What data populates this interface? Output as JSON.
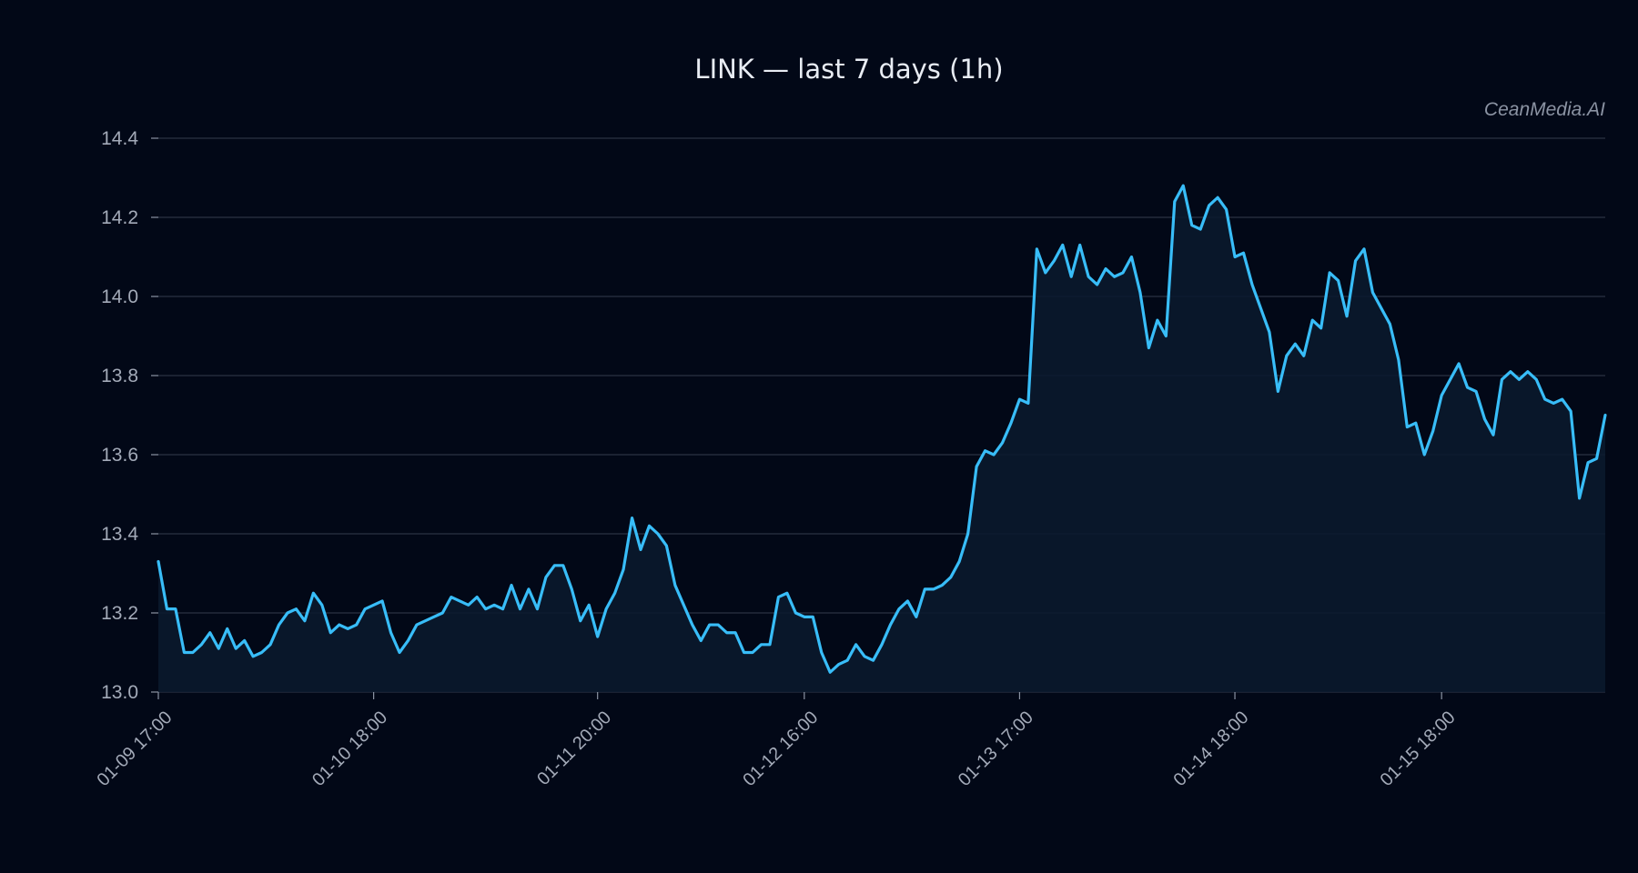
{
  "chart_data": {
    "type": "line",
    "title": "LINK — last 7 days (1h)",
    "watermark": "CeanMedia.AI",
    "xlabel": "",
    "ylabel": "",
    "ylim": [
      13.0,
      14.4
    ],
    "yticks": [
      "13.0",
      "13.2",
      "13.4",
      "13.6",
      "13.8",
      "14.0",
      "14.2",
      "14.4"
    ],
    "x_tick_labels": [
      "01-09 17:00",
      "01-10 18:00",
      "01-11 20:00",
      "01-12 16:00",
      "01-13 17:00",
      "01-14 18:00",
      "01-15 18:00"
    ],
    "x_tick_index": [
      0,
      25,
      51,
      75,
      100,
      125,
      149
    ],
    "grid": true,
    "colors": {
      "line": "#38bdf8",
      "area": "#0b1a2e",
      "background": "#020817",
      "grid": "#2b3342"
    },
    "series": [
      {
        "values": [
          13.33,
          13.21,
          13.21,
          13.1,
          13.1,
          13.12,
          13.15,
          13.11,
          13.16,
          13.11,
          13.13,
          13.09,
          13.1,
          13.12,
          13.17,
          13.2,
          13.21,
          13.18,
          13.25,
          13.22,
          13.15,
          13.17,
          13.16,
          13.17,
          13.21,
          13.22,
          13.23,
          13.15,
          13.1,
          13.13,
          13.17,
          13.18,
          13.19,
          13.2,
          13.24,
          13.23,
          13.22,
          13.24,
          13.21,
          13.22,
          13.21,
          13.27,
          13.21,
          13.26,
          13.21,
          13.29,
          13.32,
          13.32,
          13.26,
          13.18,
          13.22,
          13.14,
          13.21,
          13.25,
          13.31,
          13.44,
          13.36,
          13.42,
          13.4,
          13.37,
          13.27,
          13.22,
          13.17,
          13.13,
          13.17,
          13.17,
          13.15,
          13.15,
          13.1,
          13.1,
          13.12,
          13.12,
          13.24,
          13.25,
          13.2,
          13.19,
          13.19,
          13.1,
          13.05,
          13.07,
          13.08,
          13.12,
          13.09,
          13.08,
          13.12,
          13.17,
          13.21,
          13.23,
          13.19,
          13.26,
          13.26,
          13.27,
          13.29,
          13.33,
          13.4,
          13.57,
          13.61,
          13.6,
          13.63,
          13.68,
          13.74,
          13.73,
          14.12,
          14.06,
          14.09,
          14.13,
          14.05,
          14.13,
          14.05,
          14.03,
          14.07,
          14.05,
          14.06,
          14.1,
          14.01,
          13.87,
          13.94,
          13.9,
          14.24,
          14.28,
          14.18,
          14.17,
          14.23,
          14.25,
          14.22,
          14.1,
          14.11,
          14.03,
          13.97,
          13.91,
          13.76,
          13.85,
          13.88,
          13.85,
          13.94,
          13.92,
          14.06,
          14.04,
          13.95,
          14.09,
          14.12,
          14.01,
          13.97,
          13.93,
          13.84,
          13.67,
          13.68,
          13.6,
          13.66,
          13.75,
          13.79,
          13.83,
          13.77,
          13.76,
          13.69,
          13.65,
          13.79,
          13.81,
          13.79,
          13.81,
          13.79,
          13.74,
          13.73,
          13.74,
          13.71,
          13.49,
          13.58,
          13.59,
          13.7
        ]
      }
    ]
  }
}
